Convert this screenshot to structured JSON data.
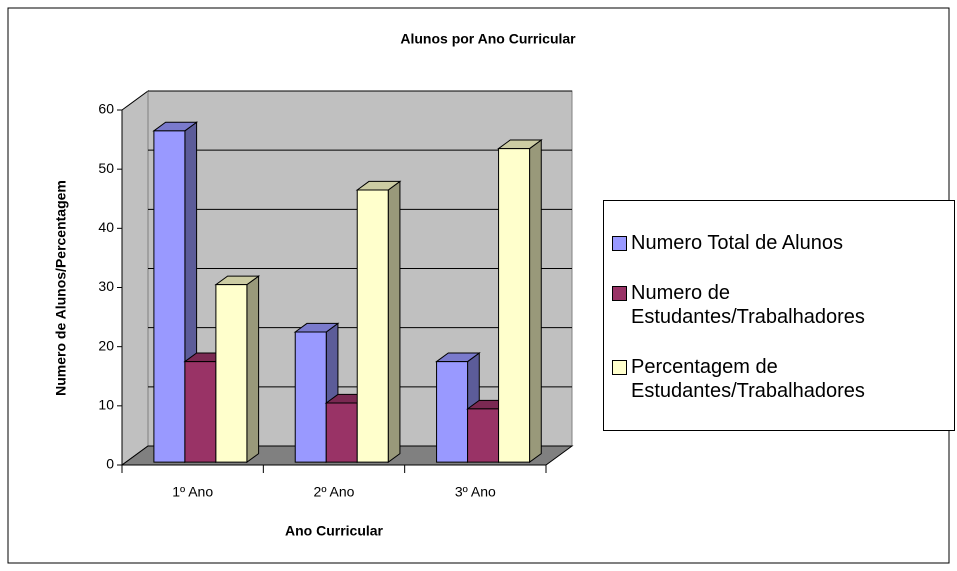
{
  "chart_data": {
    "type": "bar3d",
    "title": "Alunos por Ano Curricular",
    "xlabel": "Ano Curricular",
    "ylabel": "Numero de Alunos/Percentagem",
    "categories": [
      "1º Ano",
      "2º Ano",
      "3º Ano"
    ],
    "series": [
      {
        "name": "Numero Total de Alunos",
        "color": "#9999ff",
        "values": [
          56,
          22,
          17
        ]
      },
      {
        "name": "Numero de Estudantes/Trabalhadores",
        "color": "#993366",
        "values": [
          17,
          10,
          9
        ]
      },
      {
        "name": "Percentagem de Estudantes/Trabalhadores",
        "color": "#ffffcc",
        "values": [
          30,
          46,
          53
        ]
      }
    ],
    "ylim": [
      0,
      60
    ],
    "yticks": [
      0,
      10,
      20,
      30,
      40,
      50,
      60
    ],
    "grid": true,
    "legend": "right"
  }
}
